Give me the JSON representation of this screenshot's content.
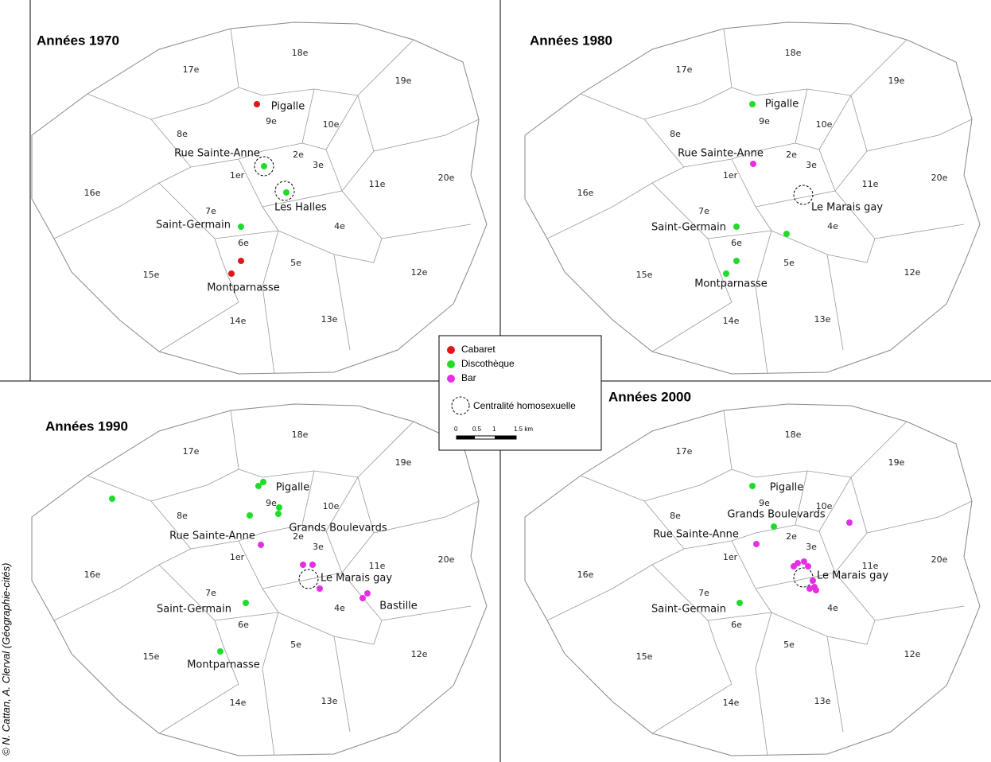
{
  "panels": [
    {
      "title": "Années 1970",
      "districts": [
        "17e",
        "18e",
        "19e",
        "8e",
        "9e",
        "10e",
        "2e",
        "3e",
        "1er",
        "11e",
        "20e",
        "16e",
        "7e",
        "4e",
        "6e",
        "5e",
        "15e",
        "12e",
        "14e",
        "13e"
      ],
      "places": [
        "Pigalle",
        "Rue Sainte-Anne",
        "Les Halles",
        "Saint-Germain",
        "Montparnasse"
      ]
    },
    {
      "title": "Années 1980",
      "districts": [
        "17e",
        "18e",
        "19e",
        "8e",
        "9e",
        "10e",
        "2e",
        "3e",
        "1er",
        "11e",
        "20e",
        "16e",
        "7e",
        "4e",
        "6e",
        "5e",
        "15e",
        "12e",
        "14e",
        "13e"
      ],
      "places": [
        "Pigalle",
        "Rue Sainte-Anne",
        "Le Marais gay",
        "Saint-Germain",
        "Montparnasse"
      ]
    },
    {
      "title": "Années 1990",
      "districts": [
        "17e",
        "18e",
        "19e",
        "8e",
        "9e",
        "10e",
        "2e",
        "3e",
        "1er",
        "11e",
        "20e",
        "16e",
        "7e",
        "4e",
        "6e",
        "5e",
        "15e",
        "12e",
        "14e",
        "13e"
      ],
      "places": [
        "Pigalle",
        "Grands Boulevards",
        "Rue Sainte-Anne",
        "Le Marais gay",
        "Bastille",
        "Saint-Germain",
        "Montparnasse"
      ]
    },
    {
      "title": "Années 2000",
      "districts": [
        "17e",
        "18e",
        "19e",
        "8e",
        "9e",
        "10e",
        "2e",
        "3e",
        "1er",
        "11e",
        "20e",
        "16e",
        "7e",
        "4e",
        "6e",
        "5e",
        "15e",
        "12e",
        "14e",
        "13e"
      ],
      "places": [
        "Pigalle",
        "Grands Boulevards",
        "Rue Sainte-Anne",
        "Le Marais gay",
        "Saint-Germain"
      ]
    }
  ],
  "legend": {
    "items": [
      "Cabaret",
      "Discothèque",
      "Bar"
    ],
    "centrality": "Centralité homosexuelle",
    "scale": [
      "0",
      "0.5",
      "1",
      "1.5 km"
    ]
  },
  "credit": "© N. Cattan, A. Clerval (Géographie-cités)"
}
